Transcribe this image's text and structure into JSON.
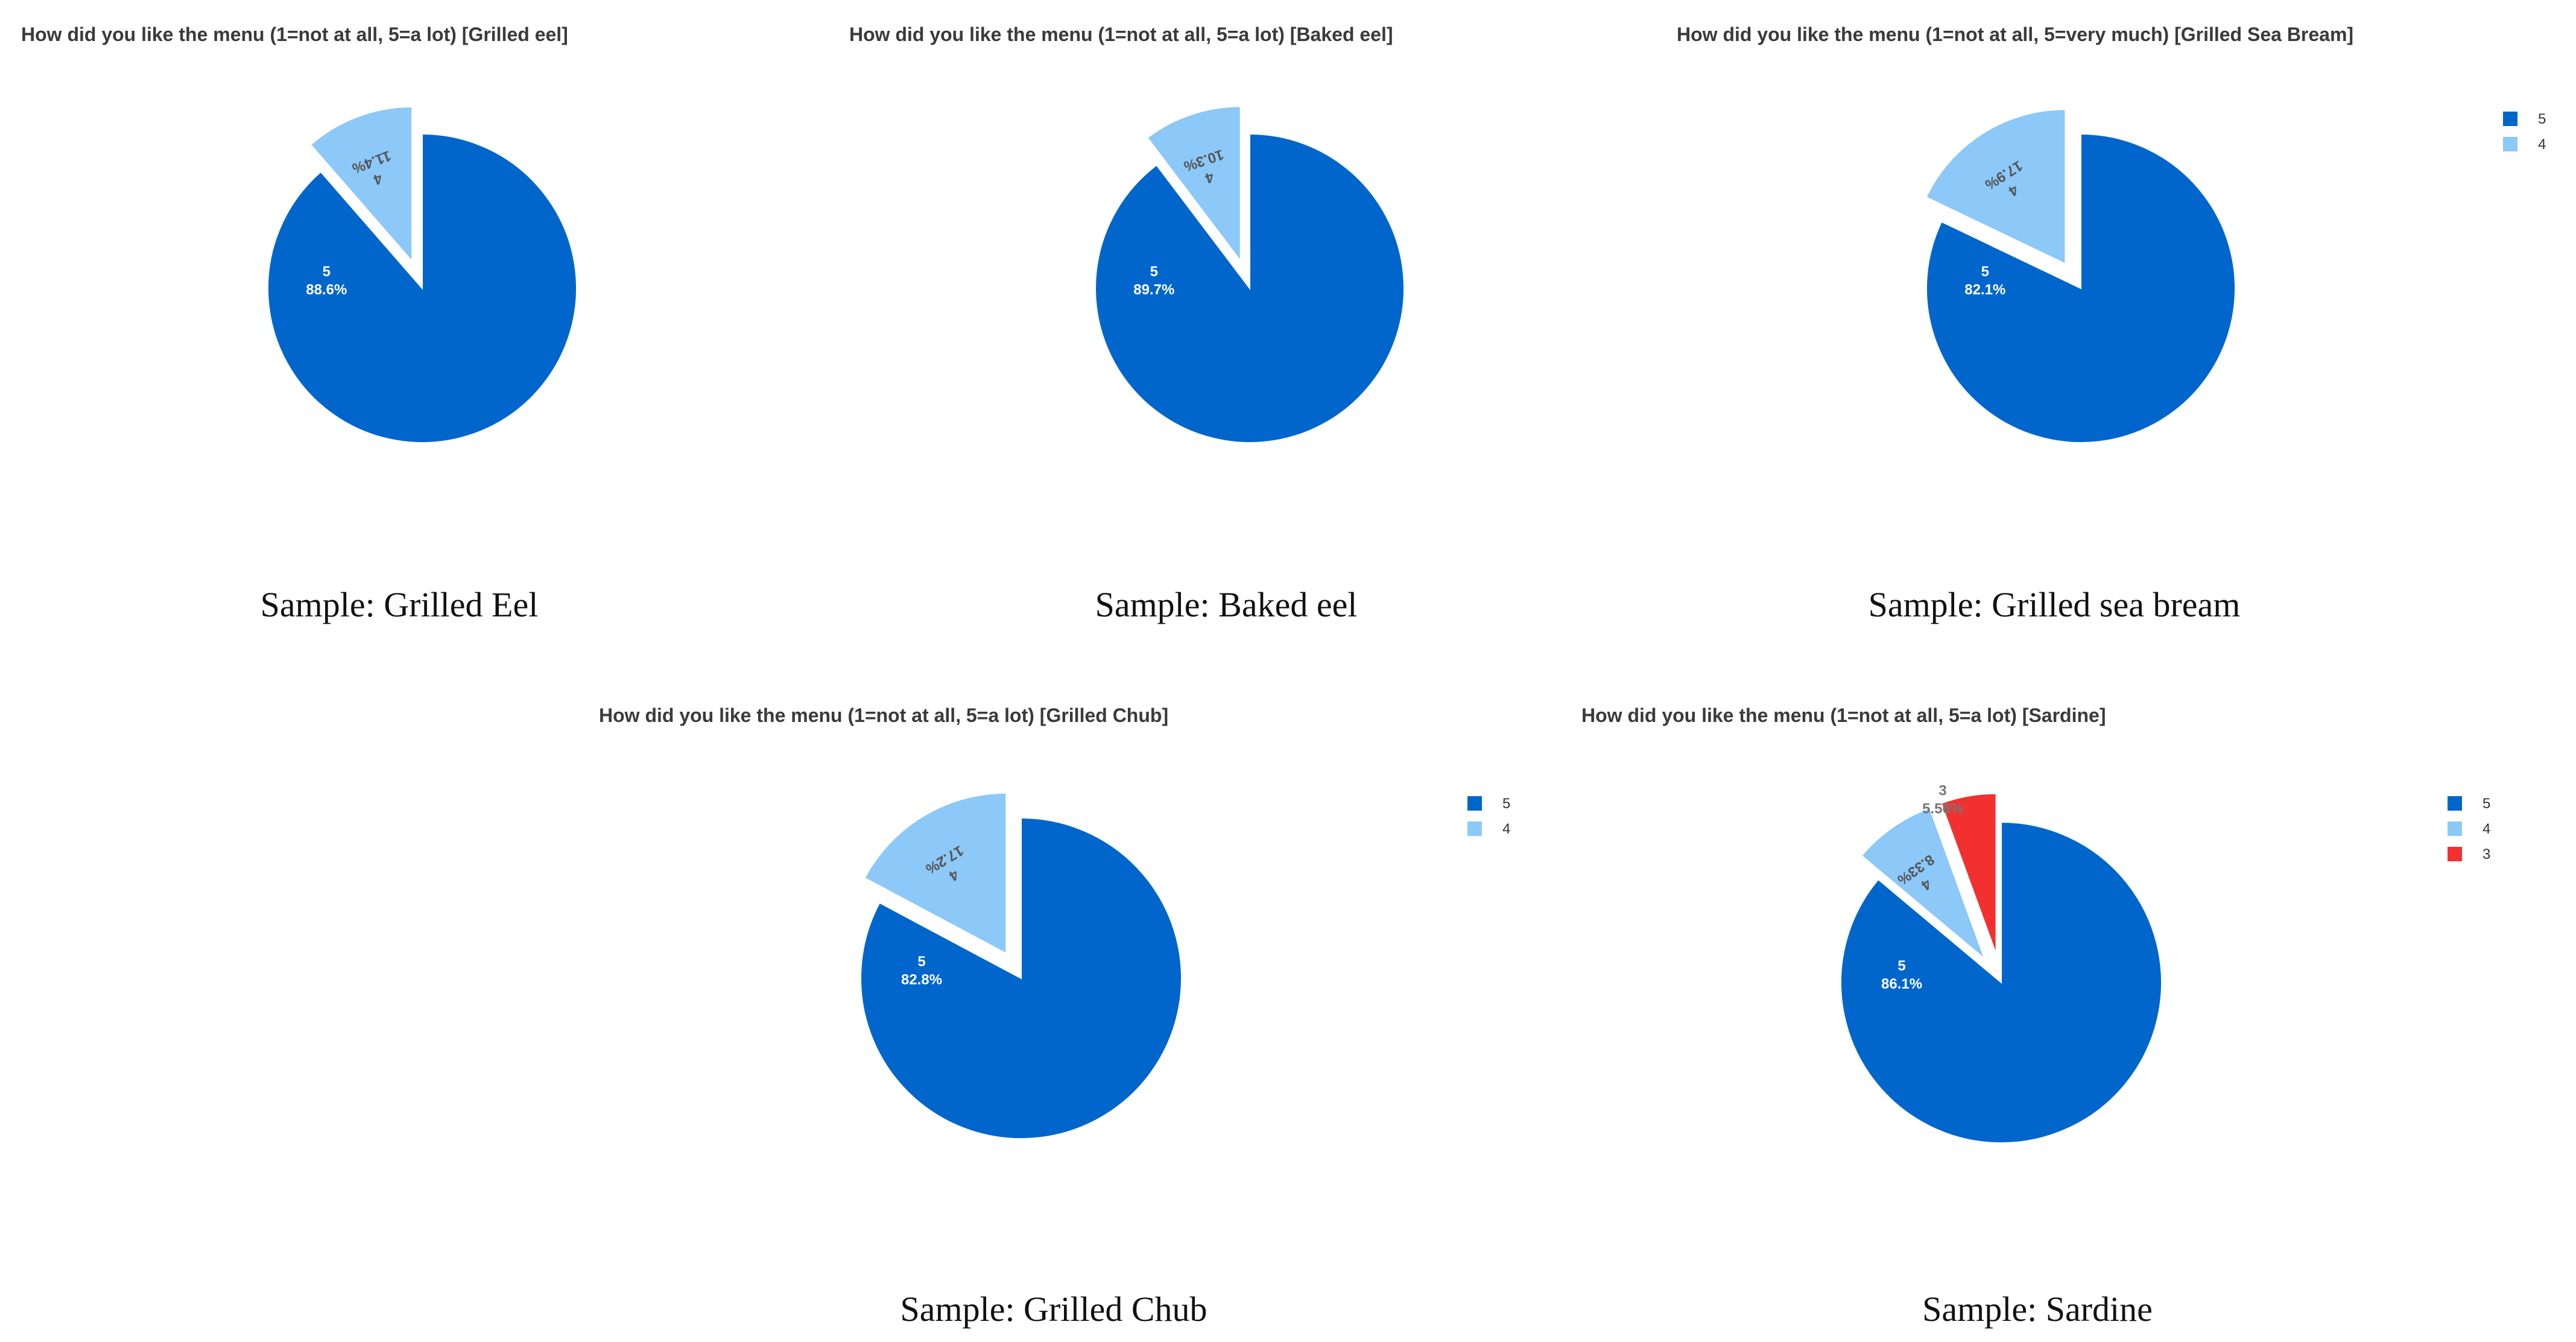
{
  "chart_data": [
    {
      "type": "pie",
      "title": "How did you like the menu (1=not at all, 5=a lot) [Grilled eel]",
      "caption": "Sample: Grilled Eel",
      "categories": [
        "5",
        "4"
      ],
      "values": [
        88.6,
        11.4
      ],
      "value_labels": [
        "88.6%",
        "11.4%"
      ],
      "colors": [
        "#0066CC",
        "#8CC8F8"
      ],
      "exploded": [
        "4"
      ],
      "legend": false
    },
    {
      "type": "pie",
      "title": "How did you like the menu (1=not at all, 5=a lot) [Baked eel]",
      "caption": "Sample: Baked eel",
      "categories": [
        "5",
        "4"
      ],
      "values": [
        89.7,
        10.3
      ],
      "value_labels": [
        "89.7%",
        "10.3%"
      ],
      "colors": [
        "#0066CC",
        "#8CC8F8"
      ],
      "exploded": [
        "4"
      ],
      "legend": false
    },
    {
      "type": "pie",
      "title": "How did you like the menu (1=not at all, 5=very much) [Grilled Sea Bream]",
      "caption": "Sample: Grilled sea bream",
      "categories": [
        "5",
        "4"
      ],
      "values": [
        82.1,
        17.9
      ],
      "value_labels": [
        "82.1%",
        "17.9%"
      ],
      "colors": [
        "#0066CC",
        "#8CC8F8"
      ],
      "exploded": [
        "4"
      ],
      "legend": true,
      "legend_position": "right"
    },
    {
      "type": "pie",
      "title": "How did you like the menu (1=not at all, 5=a lot) [Grilled Chub]",
      "caption": "Sample: Grilled Chub",
      "categories": [
        "5",
        "4"
      ],
      "values": [
        82.8,
        17.2
      ],
      "value_labels": [
        "82.8%",
        "17.2%"
      ],
      "colors": [
        "#0066CC",
        "#8CC8F8"
      ],
      "exploded": [
        "4"
      ],
      "legend": true,
      "legend_position": "right"
    },
    {
      "type": "pie",
      "title": "How did you like the menu (1=not at all, 5=a lot) [Sardine]",
      "caption": "Sample: Sardine",
      "categories": [
        "5",
        "4",
        "3"
      ],
      "values": [
        86.1,
        8.33,
        5.56
      ],
      "value_labels": [
        "86.1%",
        "8.33%",
        "5.56%"
      ],
      "colors": [
        "#0066CC",
        "#8CC8F8",
        "#F23030"
      ],
      "exploded": [
        "4",
        "3"
      ],
      "legend": true,
      "legend_position": "right"
    }
  ]
}
